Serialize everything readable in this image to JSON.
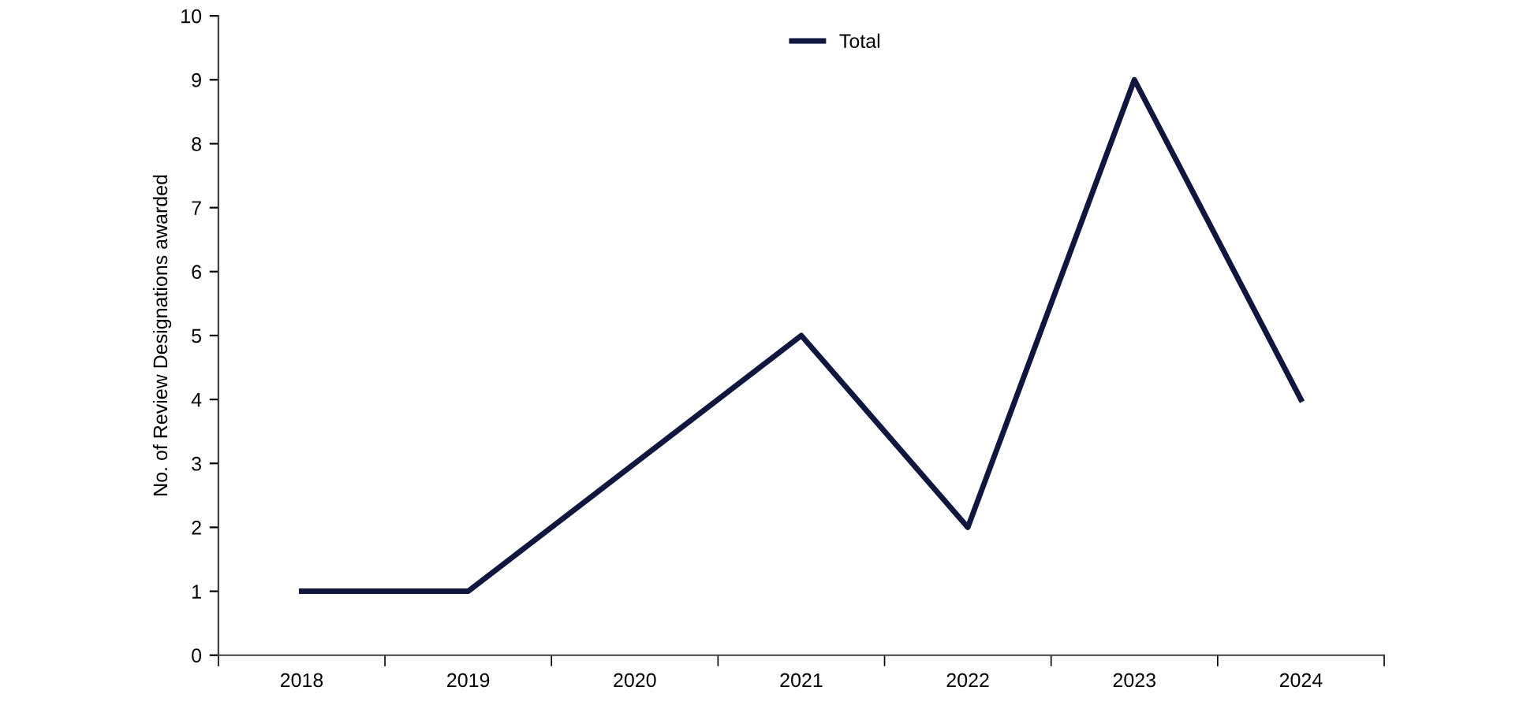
{
  "chart_data": {
    "type": "line",
    "ylabel": "No. of Review Designations awarded",
    "categories": [
      "2018",
      "2019",
      "2020",
      "2021",
      "2022",
      "2023",
      "2024"
    ],
    "series": [
      {
        "name": "Total",
        "color": "#10173f",
        "values": [
          1,
          1,
          3,
          5,
          2,
          9,
          4
        ]
      }
    ],
    "ylim": [
      0,
      10
    ],
    "yticks": [
      0,
      1,
      2,
      3,
      4,
      5,
      6,
      7,
      8,
      9,
      10
    ],
    "grid": false,
    "legend": "top",
    "marker": "none",
    "line_style": "solid"
  }
}
